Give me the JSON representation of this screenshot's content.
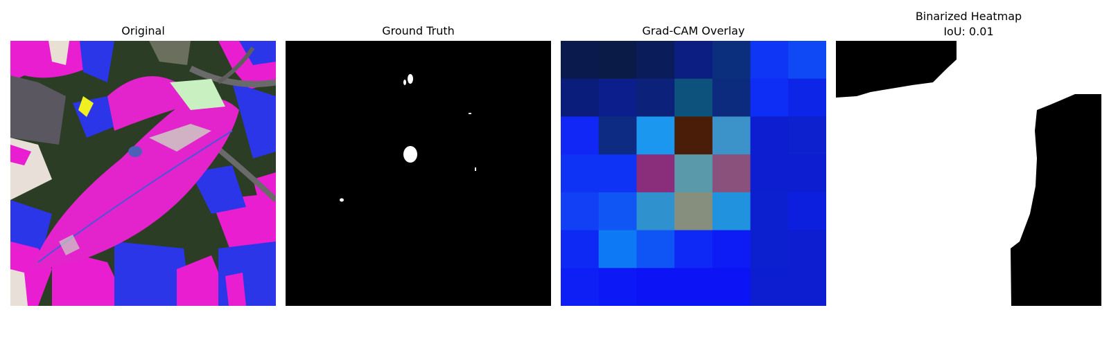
{
  "panels": [
    {
      "title": "Original"
    },
    {
      "title": "Ground Truth"
    },
    {
      "title": "Grad-CAM Overlay"
    },
    {
      "title": "Binarized Heatmap",
      "subtitle": "IoU: 0.01"
    }
  ],
  "gradcam_colors": [
    [
      "#0b1a4d",
      "#0b1b48",
      "#0b1c5a",
      "#0c1e82",
      "#0b2f7d",
      "#0f35f5",
      "#0e49f5"
    ],
    [
      "#0b1d7a",
      "#0c1e8c",
      "#0c227a",
      "#0d527c",
      "#0c2b7f",
      "#0e2ef5",
      "#0d25e6"
    ],
    [
      "#1027f5",
      "#0d2b82",
      "#1c97ef",
      "#4a1d08",
      "#3c93c9",
      "#0c1ecf",
      "#0d21cf"
    ],
    [
      "#0f33f5",
      "#0f33f5",
      "#8a2d7b",
      "#5999aa",
      "#8a517d",
      "#0c1ecf",
      "#0c1ecf"
    ],
    [
      "#1140f5",
      "#0f56f5",
      "#2f92cf",
      "#868f7e",
      "#2192de",
      "#0c20cf",
      "#0d1fde"
    ],
    [
      "#0f29f5",
      "#0e79f5",
      "#0f54f5",
      "#0e29f5",
      "#0d1cf5",
      "#0c20cf",
      "#0c1ecf"
    ],
    [
      "#0d1ff5",
      "#0c18f5",
      "#0c14f5",
      "#0c14f5",
      "#0c14f5",
      "#0c1ecf",
      "#0c1ecf"
    ]
  ]
}
